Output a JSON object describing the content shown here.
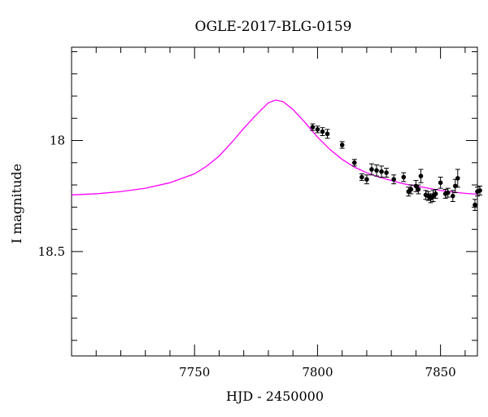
{
  "chart_data": {
    "type": "scatter",
    "title": "OGLE-2017-BLG-0159",
    "xlabel": "HJD - 2450000",
    "ylabel": "I magnitude",
    "xlim": [
      7700,
      7865
    ],
    "ylim": [
      18.97,
      17.58
    ],
    "y_inverted": true,
    "x_ticks": [
      7750,
      7800,
      7850
    ],
    "y_ticks": [
      18,
      18.5
    ],
    "x_tick_labels": [
      "7750",
      "7800",
      "7850"
    ],
    "y_tick_labels": [
      "18",
      "18.5"
    ],
    "grid": false,
    "colors": {
      "model": "#ff00ff",
      "data": "#000000"
    },
    "model": {
      "name": "model",
      "x": [
        7700,
        7710,
        7720,
        7730,
        7740,
        7750,
        7755,
        7760,
        7765,
        7770,
        7775,
        7780,
        7783,
        7786,
        7790,
        7795,
        7800,
        7805,
        7810,
        7815,
        7820,
        7825,
        7830,
        7835,
        7840,
        7845,
        7850,
        7855,
        7860,
        7865
      ],
      "y": [
        18.245,
        18.24,
        18.23,
        18.215,
        18.19,
        18.15,
        18.115,
        18.07,
        18.01,
        17.945,
        17.885,
        17.83,
        17.818,
        17.825,
        17.86,
        17.92,
        17.985,
        18.04,
        18.085,
        18.12,
        18.145,
        18.165,
        18.18,
        18.195,
        18.205,
        18.215,
        18.225,
        18.232,
        18.238,
        18.242
      ]
    },
    "series": [
      {
        "name": "data",
        "x": [
          7798,
          7800,
          7802,
          7804,
          7810,
          7815,
          7818,
          7820,
          7822,
          7824,
          7826,
          7828,
          7831,
          7835,
          7837,
          7838,
          7840,
          7841,
          7842,
          7844,
          7845,
          7846,
          7847,
          7848,
          7850,
          7852,
          7853,
          7855,
          7856,
          7857,
          7864,
          7865,
          7866
        ],
        "y": [
          17.94,
          17.95,
          17.96,
          17.97,
          18.02,
          18.1,
          18.165,
          18.175,
          18.13,
          18.135,
          18.14,
          18.145,
          18.175,
          18.165,
          18.23,
          18.22,
          18.205,
          18.22,
          18.16,
          18.245,
          18.25,
          18.26,
          18.25,
          18.24,
          18.19,
          18.24,
          18.235,
          18.25,
          18.205,
          18.17,
          18.29,
          18.23,
          18.225
        ],
        "err": [
          0.015,
          0.015,
          0.018,
          0.02,
          0.015,
          0.015,
          0.015,
          0.02,
          0.025,
          0.025,
          0.025,
          0.02,
          0.02,
          0.02,
          0.02,
          0.02,
          0.025,
          0.02,
          0.03,
          0.02,
          0.02,
          0.02,
          0.025,
          0.02,
          0.025,
          0.02,
          0.02,
          0.025,
          0.03,
          0.04,
          0.025,
          0.02,
          0.02
        ]
      }
    ]
  }
}
